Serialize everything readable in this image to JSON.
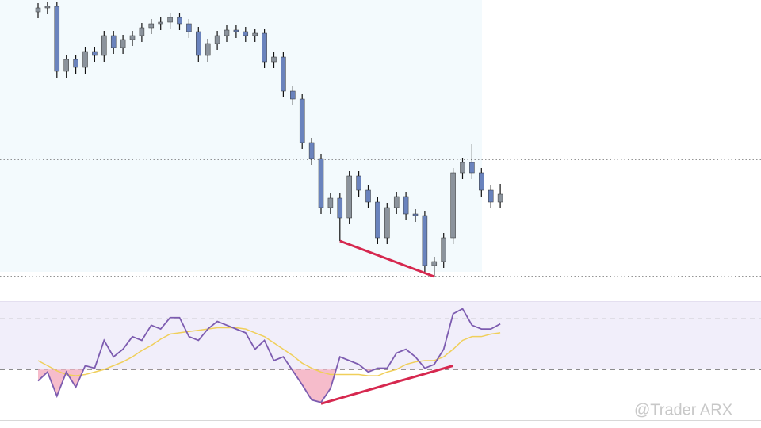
{
  "chart_data": [
    {
      "type": "candlestick",
      "open": [
        355,
        360,
        362,
        280,
        295,
        285,
        305,
        300,
        325,
        310,
        320,
        325,
        335,
        340,
        342,
        348,
        340,
        330,
        300,
        315,
        325,
        332,
        330,
        325,
        328,
        292,
        298,
        255,
        245,
        190,
        170,
        108,
        120,
        95,
        148,
        130,
        115,
        70,
        108,
        122,
        100,
        98,
        35,
        40,
        70,
        152,
        165,
        152,
        130,
        115
      ],
      "high": [
        366,
        368,
        368,
        301,
        301,
        311,
        311,
        331,
        331,
        326,
        331,
        341,
        346,
        348,
        354,
        354,
        346,
        336,
        321,
        331,
        338,
        338,
        336,
        334,
        334,
        304,
        304,
        261,
        251,
        196,
        176,
        126,
        126,
        154,
        154,
        136,
        121,
        114,
        128,
        128,
        106,
        104,
        46,
        76,
        158,
        171,
        188,
        158,
        136,
        138
      ],
      "low": [
        347,
        352,
        272,
        272,
        277,
        277,
        292,
        292,
        302,
        302,
        312,
        317,
        327,
        332,
        334,
        332,
        322,
        292,
        292,
        307,
        317,
        322,
        317,
        317,
        284,
        284,
        247,
        237,
        182,
        162,
        100,
        100,
        66,
        87,
        122,
        107,
        62,
        62,
        100,
        92,
        90,
        27,
        21,
        32,
        62,
        144,
        144,
        122,
        107,
        107
      ],
      "close": [
        360,
        362,
        280,
        295,
        285,
        305,
        300,
        325,
        310,
        320,
        325,
        335,
        340,
        342,
        348,
        340,
        330,
        300,
        315,
        325,
        332,
        330,
        325,
        328,
        292,
        298,
        255,
        245,
        190,
        170,
        108,
        120,
        95,
        148,
        130,
        115,
        70,
        108,
        122,
        100,
        98,
        35,
        40,
        70,
        152,
        165,
        152,
        130,
        115,
        125
      ],
      "up_color": "#8b939c",
      "down_color": "#6a83bd",
      "ylim": [
        0,
        370
      ],
      "levels": [
        169,
        21
      ],
      "trendlines": [
        {
          "x": [
            32,
            42
          ],
          "y": [
            66,
            21
          ],
          "color": "#d6284f"
        }
      ]
    },
    {
      "type": "line",
      "series": [
        {
          "color": "#7d5cb0",
          "values": [
            21,
            28,
            9,
            28,
            16,
            33,
            31,
            53,
            40,
            46,
            56,
            53,
            65,
            62,
            71,
            71,
            56,
            53,
            62,
            68,
            65,
            62,
            59,
            46,
            53,
            37,
            40,
            29,
            18,
            6,
            4,
            15,
            40,
            37,
            34,
            28,
            31,
            31,
            43,
            46,
            40,
            31,
            34,
            46,
            74,
            78,
            65,
            62,
            62,
            66
          ]
        },
        {
          "color": "#f0cf5a",
          "values": [
            37,
            33,
            29,
            26,
            25,
            26,
            28,
            30,
            33,
            36,
            40,
            45,
            49,
            54,
            58,
            59,
            60,
            61,
            62,
            63,
            63,
            63,
            62,
            59,
            56,
            51,
            46,
            41,
            35,
            31,
            28,
            26,
            26,
            26,
            26,
            25,
            25,
            28,
            30,
            34,
            36,
            37,
            37,
            40,
            46,
            53,
            56,
            56,
            58,
            59
          ]
        }
      ],
      "ylim": [
        -10,
        84
      ],
      "levels": [
        70,
        30
      ],
      "trendlines": [
        {
          "x": [
            30,
            44
          ],
          "y": [
            3,
            33
          ],
          "color": "#d6284f"
        }
      ]
    }
  ],
  "watermark": "@Trader ARX"
}
